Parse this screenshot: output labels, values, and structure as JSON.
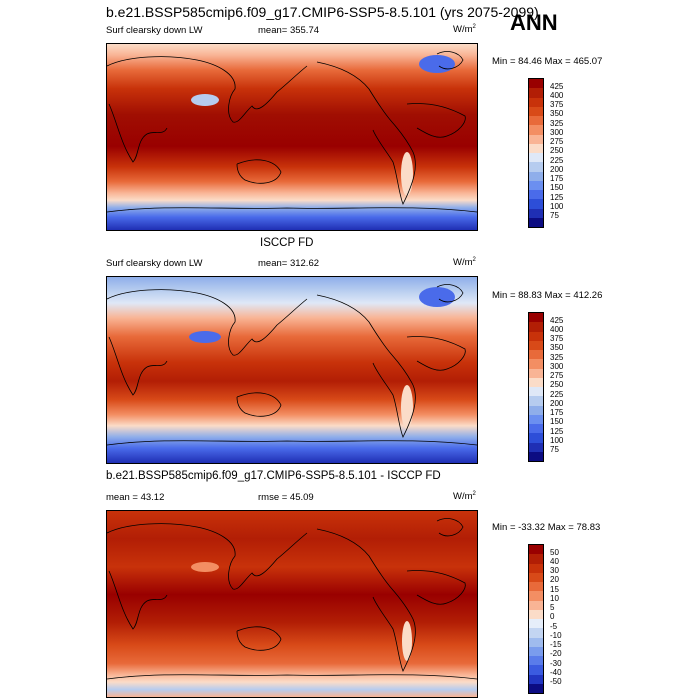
{
  "season": "ANN",
  "panels": [
    {
      "title": "b.e21.BSSP585cmip6.f09_g17.CMIP6-SSP5-8.5.101 (yrs 2075-2099)",
      "left_label": "Surf clearsky down LW",
      "center_label": "mean= 355.74",
      "units_base": "W/m",
      "units_exp": "2",
      "minmax": "Min =  84.46 Max = 465.07",
      "colorbar_labels": [
        "425",
        "400",
        "375",
        "350",
        "325",
        "300",
        "275",
        "250",
        "225",
        "200",
        "175",
        "150",
        "125",
        "100",
        "75"
      ],
      "colorbar_colors": [
        "#990000",
        "#b21e05",
        "#c8320a",
        "#d84a18",
        "#e86a3a",
        "#f38e63",
        "#f9b495",
        "#fbdcc8",
        "#dfe8f7",
        "#b6ccef",
        "#8faeea",
        "#6b8ff0",
        "#4a6bea",
        "#2d4ed8",
        "#1f2fb4",
        "#0c0c82"
      ]
    },
    {
      "title": "ISCCP FD",
      "left_label": "Surf clearsky down LW",
      "center_label": "mean= 312.62",
      "units_base": "W/m",
      "units_exp": "2",
      "minmax": "Min =  88.83 Max = 412.26",
      "colorbar_labels": [
        "425",
        "400",
        "375",
        "350",
        "325",
        "300",
        "275",
        "250",
        "225",
        "200",
        "175",
        "150",
        "125",
        "100",
        "75"
      ],
      "colorbar_colors": [
        "#990000",
        "#b21e05",
        "#c8320a",
        "#d84a18",
        "#e86a3a",
        "#f38e63",
        "#f9b495",
        "#fbdcc8",
        "#dfe8f7",
        "#b6ccef",
        "#8faeea",
        "#6b8ff0",
        "#4a6bea",
        "#2d4ed8",
        "#1f2fb4",
        "#0c0c82"
      ]
    },
    {
      "title": "b.e21.BSSP585cmip6.f09_g17.CMIP6-SSP5-8.5.101 - ISCCP FD",
      "left_label": "mean =  43.12",
      "center_label": "rmse =  45.09",
      "units_base": "W/m",
      "units_exp": "2",
      "minmax": "Min = -33.32 Max =  78.83",
      "colorbar_labels": [
        "50",
        "40",
        "30",
        "20",
        "15",
        "10",
        "5",
        "0",
        "-5",
        "-10",
        "-15",
        "-20",
        "-30",
        "-40",
        "-50"
      ],
      "colorbar_colors": [
        "#990000",
        "#b21e05",
        "#c8320a",
        "#d84a18",
        "#e86a3a",
        "#f38e63",
        "#f9b495",
        "#fbdcc8",
        "#e6eefa",
        "#c3d5f2",
        "#9fbbee",
        "#7a9ced",
        "#5a7cea",
        "#3b5be0",
        "#2236c2",
        "#0c0c82"
      ]
    }
  ]
}
